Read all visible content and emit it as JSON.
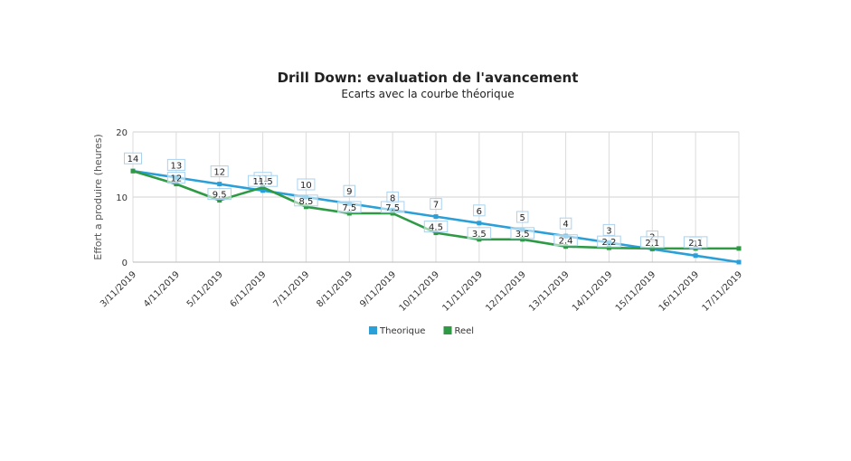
{
  "chart_data": {
    "type": "line",
    "title": "Drill Down: evaluation de l'avancement",
    "subtitle": "Ecarts avec la courbe théorique",
    "xlabel": "",
    "ylabel": "Effort a produire (heures)",
    "ylim": [
      0,
      20
    ],
    "yticks": [
      "0",
      "10",
      "20"
    ],
    "grid": true,
    "legend_position": "bottom",
    "categories": [
      "3/11/2019",
      "4/11/2019",
      "5/11/2019",
      "6/11/2019",
      "7/11/2019",
      "8/11/2019",
      "9/11/2019",
      "10/11/2019",
      "11/11/2019",
      "12/11/2019",
      "13/11/2019",
      "14/11/2019",
      "15/11/2019",
      "16/11/2019",
      "17/11/2019"
    ],
    "series": [
      {
        "name": "Theorique",
        "color": "#2a9fd8",
        "values": [
          14,
          13,
          12,
          11,
          10,
          9,
          8,
          7,
          6,
          5,
          4,
          3,
          2,
          1,
          0
        ],
        "labels": [
          "14",
          "13",
          "12",
          "11",
          "10",
          "9",
          "8",
          "7",
          "6",
          "5",
          "4",
          "3",
          "2",
          "1",
          ""
        ]
      },
      {
        "name": "Reel",
        "color": "#2e9a44",
        "values": [
          14,
          12,
          9.5,
          11.5,
          8.5,
          7.5,
          7.5,
          4.5,
          3.5,
          3.5,
          2.4,
          2.2,
          2.1,
          2.1,
          2.1
        ],
        "labels": [
          "",
          "12",
          "9.5",
          "11.5",
          "8.5",
          "7.5",
          "7.5",
          "4.5",
          "3.5",
          "3.5",
          "2.4",
          "2.2",
          "2.1",
          "2.1",
          ""
        ]
      }
    ]
  }
}
